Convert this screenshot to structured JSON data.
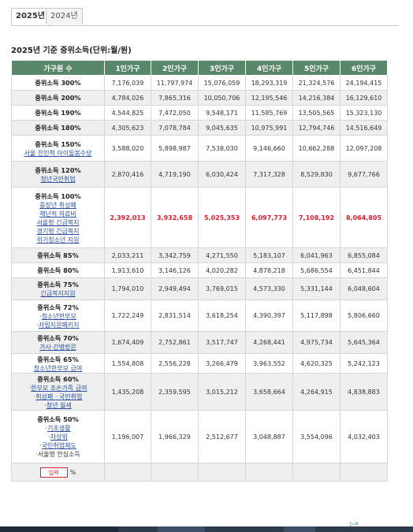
{
  "tabs": [
    "2025년",
    "2024년"
  ],
  "title": "2025년 기준 중위소득(단위:월/원)",
  "table": {
    "headers": [
      "가구원 수",
      "1인가구",
      "2인가구",
      "3인가구",
      "4인가구",
      "5인가구",
      "6인가구"
    ],
    "rows": [
      {
        "label": "중위소득 300%",
        "values": [
          "7,176,039",
          "11,797,974",
          "15,076,059",
          "18,293,319",
          "21,324,576",
          "24,194,415"
        ]
      },
      {
        "label": "중위소득 200%",
        "values": [
          "4,784,026",
          "7,865,316",
          "10,050,706",
          "12,195,546",
          "14,216,384",
          "16,129,610"
        ]
      },
      {
        "label": "중위소득 190%",
        "values": [
          "4,544,825",
          "7,472,050",
          "9,548,171",
          "11,585,769",
          "13,505,565",
          "15,323,130"
        ]
      },
      {
        "label": "중위소득 180%",
        "values": [
          "4,305,623",
          "7,078,784",
          "9,045,635",
          "10,975,991",
          "12,794,746",
          "14,516,649"
        ]
      },
      {
        "label": "중위소득 150%",
        "values": [
          "3,588,020",
          "5,898,987",
          "7,538,030",
          "9,146,660",
          "10,662,288",
          "12,097,208"
        ],
        "links": [
          "서울 친인척 아이돌봄수당"
        ]
      },
      {
        "label": "중위소득 120%",
        "values": [
          "2,870,416",
          "4,719,190",
          "6,030,424",
          "7,317,328",
          "8,529,830",
          "9,677,766"
        ],
        "links": [
          "청년국민취업"
        ]
      },
      {
        "label": "중위소득 100%",
        "values": [
          "2,392,013",
          "3,932,658",
          "5,025,353",
          "6,097,773",
          "7,108,192",
          "8,064,805"
        ],
        "links": [
          "중장년 취성패",
          "재난적 의료비",
          "서울형 긴급복지",
          "경기형 긴급복지",
          "위기청소년 지원"
        ]
      },
      {
        "label": "중위소득 85%",
        "values": [
          "2,033,211",
          "3,342,759",
          "4,271,550",
          "5,183,107",
          "6,041,963",
          "6,855,084"
        ]
      },
      {
        "label": "중위소득 80%",
        "values": [
          "1,913,610",
          "3,146,126",
          "4,020,282",
          "4,878,218",
          "5,686,554",
          "6,451,844"
        ]
      },
      {
        "label": "중위소득 75%",
        "values": [
          "1,794,010",
          "2,949,494",
          "3,769,015",
          "4,573,330",
          "5,331,144",
          "6,048,604"
        ],
        "links": [
          "긴급복지지원"
        ]
      },
      {
        "label": "중위소득 72%",
        "values": [
          "1,722,249",
          "2,831,514",
          "3,618,254",
          "4,390,397",
          "5,117,898",
          "5,806,660"
        ],
        "links": [
          "청소년한부모",
          "자립지원패키지"
        ]
      },
      {
        "label": "중위소득 70%",
        "values": [
          "1,674,409",
          "2,752,861",
          "3,517,747",
          "4,268,441",
          "4,975,734",
          "5,645,364"
        ],
        "links": [
          "가사·간병방문"
        ]
      },
      {
        "label": "중위소득 65%",
        "values": [
          "1,554,808",
          "2,556,228",
          "3,266,479",
          "3,963,552",
          "4,620,325",
          "5,242,123"
        ],
        "links": [
          "청소년한부모 급여"
        ]
      },
      {
        "label": "중위소득 60%",
        "values": [
          "1,435,208",
          "2,359,595",
          "3,015,212",
          "3,658,664",
          "4,264,915",
          "4,838,883"
        ],
        "links": [
          "한부모 조손가족 급여",
          "취성패 · 국민취업",
          "청년 월세"
        ]
      },
      {
        "label": "중위소득 50%",
        "values": [
          "1,196,007",
          "1,966,329",
          "2,512,677",
          "3,048,887",
          "3,554,096",
          "4,032,403"
        ],
        "links": [
          "기초생활",
          "차상위",
          "국민취업제도"
        ],
        "plain": [
          "서울형 안심소득"
        ]
      }
    ],
    "input_row": {
      "placeholder": "입력",
      "unit": "%"
    }
  }
}
